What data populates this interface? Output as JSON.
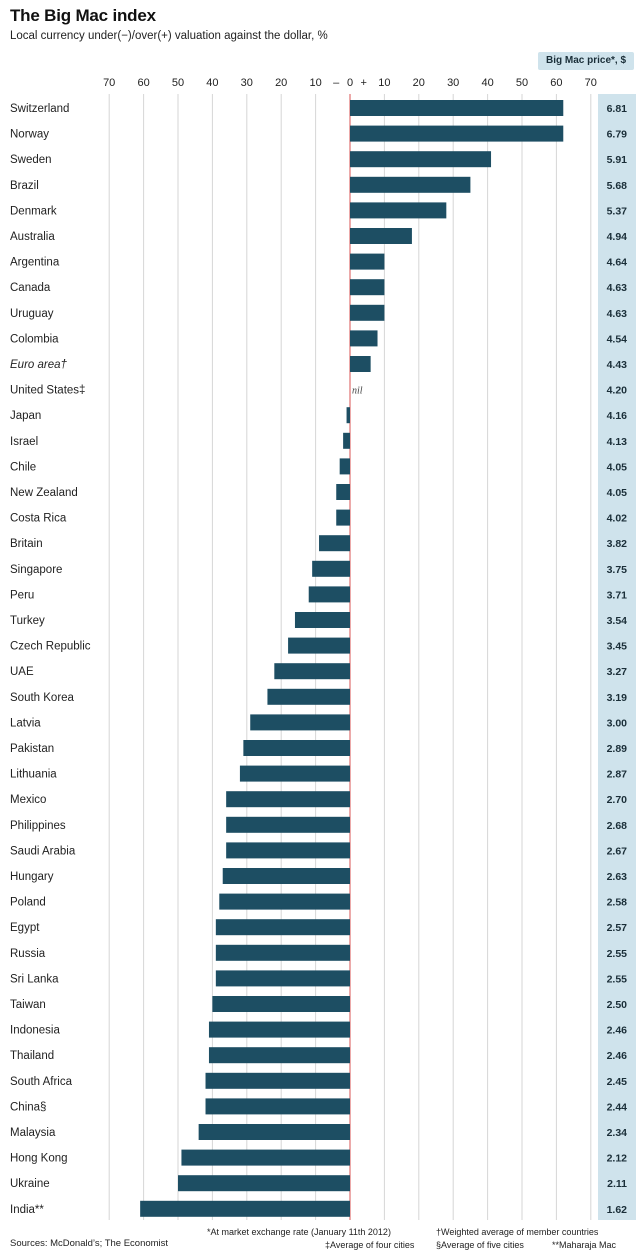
{
  "chart_data": {
    "type": "bar",
    "orientation": "horizontal",
    "title": "The Big Mac index",
    "subtitle": "Local currency under(−)/over(+) valuation against the dollar, %",
    "xlim": [
      -70,
      70
    ],
    "x_ticks": [
      "70",
      "60",
      "50",
      "40",
      "30",
      "20",
      "10",
      "–",
      "0",
      "+",
      "10",
      "20",
      "30",
      "40",
      "50",
      "60",
      "70"
    ],
    "price_header": "Big Mac price*, $",
    "nil_label": "nil",
    "bar_color": "#1d4e63",
    "price_bg_color": "#cfe3ec",
    "zero_line_color": "#e07070",
    "countries": [
      {
        "name": "Switzerland",
        "value": 62,
        "price": "6.81"
      },
      {
        "name": "Norway",
        "value": 62,
        "price": "6.79"
      },
      {
        "name": "Sweden",
        "value": 41,
        "price": "5.91"
      },
      {
        "name": "Brazil",
        "value": 35,
        "price": "5.68"
      },
      {
        "name": "Denmark",
        "value": 28,
        "price": "5.37"
      },
      {
        "name": "Australia",
        "value": 18,
        "price": "4.94"
      },
      {
        "name": "Argentina",
        "value": 10,
        "price": "4.64"
      },
      {
        "name": "Canada",
        "value": 10,
        "price": "4.63"
      },
      {
        "name": "Uruguay",
        "value": 10,
        "price": "4.63"
      },
      {
        "name": "Colombia",
        "value": 8,
        "price": "4.54"
      },
      {
        "name": "Euro area†",
        "value": 6,
        "price": "4.43",
        "italic": true
      },
      {
        "name": "United States‡",
        "value": 0,
        "price": "4.20",
        "nil": true
      },
      {
        "name": "Japan",
        "value": -1,
        "price": "4.16"
      },
      {
        "name": "Israel",
        "value": -2,
        "price": "4.13"
      },
      {
        "name": "Chile",
        "value": -3,
        "price": "4.05"
      },
      {
        "name": "New Zealand",
        "value": -4,
        "price": "4.05"
      },
      {
        "name": "Costa Rica",
        "value": -4,
        "price": "4.02"
      },
      {
        "name": "Britain",
        "value": -9,
        "price": "3.82"
      },
      {
        "name": "Singapore",
        "value": -11,
        "price": "3.75"
      },
      {
        "name": "Peru",
        "value": -12,
        "price": "3.71"
      },
      {
        "name": "Turkey",
        "value": -16,
        "price": "3.54"
      },
      {
        "name": "Czech Republic",
        "value": -18,
        "price": "3.45"
      },
      {
        "name": "UAE",
        "value": -22,
        "price": "3.27"
      },
      {
        "name": "South Korea",
        "value": -24,
        "price": "3.19"
      },
      {
        "name": "Latvia",
        "value": -29,
        "price": "3.00"
      },
      {
        "name": "Pakistan",
        "value": -31,
        "price": "2.89"
      },
      {
        "name": "Lithuania",
        "value": -32,
        "price": "2.87"
      },
      {
        "name": "Mexico",
        "value": -36,
        "price": "2.70"
      },
      {
        "name": "Philippines",
        "value": -36,
        "price": "2.68"
      },
      {
        "name": "Saudi Arabia",
        "value": -36,
        "price": "2.67"
      },
      {
        "name": "Hungary",
        "value": -37,
        "price": "2.63"
      },
      {
        "name": "Poland",
        "value": -38,
        "price": "2.58"
      },
      {
        "name": "Egypt",
        "value": -39,
        "price": "2.57"
      },
      {
        "name": "Russia",
        "value": -39,
        "price": "2.55"
      },
      {
        "name": "Sri Lanka",
        "value": -39,
        "price": "2.55"
      },
      {
        "name": "Taiwan",
        "value": -40,
        "price": "2.50"
      },
      {
        "name": "Indonesia",
        "value": -41,
        "price": "2.46"
      },
      {
        "name": "Thailand",
        "value": -41,
        "price": "2.46"
      },
      {
        "name": "South Africa",
        "value": -42,
        "price": "2.45"
      },
      {
        "name": "China§",
        "value": -42,
        "price": "2.44"
      },
      {
        "name": "Malaysia",
        "value": -44,
        "price": "2.34"
      },
      {
        "name": "Hong Kong",
        "value": -49,
        "price": "2.12"
      },
      {
        "name": "Ukraine",
        "value": -50,
        "price": "2.11"
      },
      {
        "name": "India**",
        "value": -61,
        "price": "1.62"
      }
    ]
  },
  "footnotes": {
    "sources": "Sources: McDonald’s; The Economist",
    "exchange": "*At market exchange rate (January 11th 2012)",
    "weighted": "†Weighted average of member countries",
    "four_cities": "‡Average of four cities",
    "five_cities": "§Average of five cities",
    "maharaja": "**Maharaja Mac"
  }
}
